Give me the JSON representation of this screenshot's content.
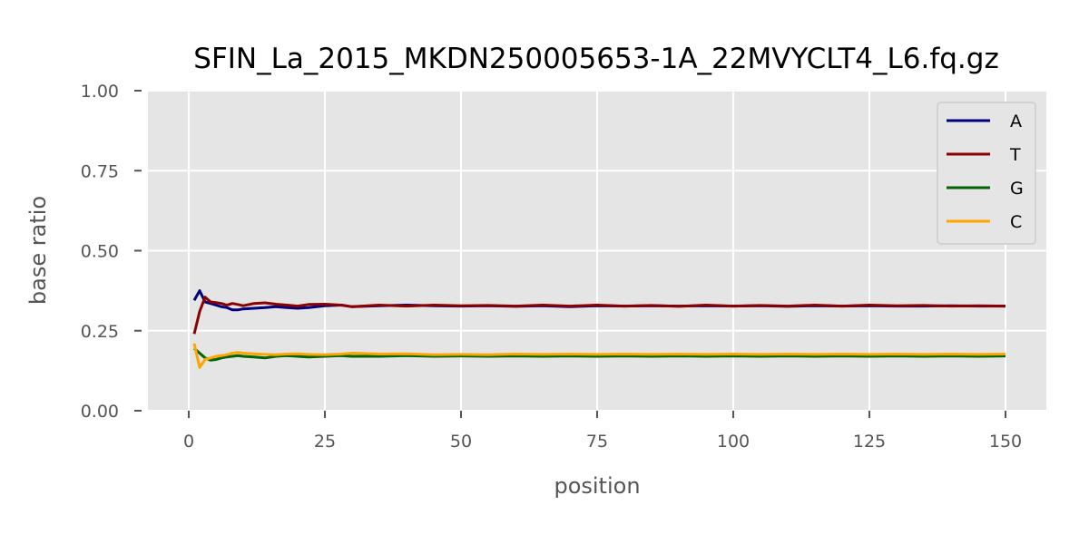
{
  "chart_data": {
    "type": "line",
    "title": "SFIN_La_2015_MKDN250005653-1A_22MVYCLT4_L6.fq.gz",
    "xlabel": "position",
    "ylabel": "base ratio",
    "xlim": [
      -7.5,
      157.5
    ],
    "ylim": [
      0.0,
      1.0
    ],
    "x_ticks": [
      0,
      25,
      50,
      75,
      100,
      125,
      150
    ],
    "x_tick_labels": [
      "0",
      "25",
      "50",
      "75",
      "100",
      "125",
      "150"
    ],
    "y_ticks": [
      0.0,
      0.25,
      0.5,
      0.75,
      1.0
    ],
    "y_tick_labels": [
      "0.00",
      "0.25",
      "0.50",
      "0.75",
      "1.00"
    ],
    "grid": true,
    "legend_position": "top-right",
    "series": [
      {
        "name": "A",
        "color": "#00007f",
        "x": [
          1,
          2,
          3,
          4,
          5,
          6,
          7,
          8,
          9,
          10,
          12,
          14,
          16,
          18,
          20,
          22,
          25,
          28,
          30,
          35,
          40,
          45,
          50,
          55,
          60,
          65,
          70,
          75,
          80,
          85,
          90,
          95,
          100,
          105,
          110,
          115,
          120,
          125,
          130,
          135,
          140,
          145,
          150
        ],
        "values": [
          0.345,
          0.375,
          0.34,
          0.335,
          0.33,
          0.325,
          0.322,
          0.315,
          0.315,
          0.318,
          0.32,
          0.322,
          0.325,
          0.322,
          0.32,
          0.322,
          0.328,
          0.33,
          0.325,
          0.328,
          0.33,
          0.328,
          0.327,
          0.328,
          0.326,
          0.328,
          0.325,
          0.328,
          0.327,
          0.328,
          0.327,
          0.328,
          0.327,
          0.328,
          0.326,
          0.328,
          0.327,
          0.328,
          0.327,
          0.327,
          0.328,
          0.327,
          0.327
        ]
      },
      {
        "name": "T",
        "color": "#8b0000",
        "x": [
          1,
          2,
          3,
          4,
          5,
          6,
          7,
          8,
          9,
          10,
          12,
          14,
          16,
          18,
          20,
          22,
          25,
          28,
          30,
          35,
          40,
          45,
          50,
          55,
          60,
          65,
          70,
          75,
          80,
          85,
          90,
          95,
          100,
          105,
          110,
          115,
          120,
          125,
          130,
          135,
          140,
          145,
          150
        ],
        "values": [
          0.24,
          0.31,
          0.355,
          0.34,
          0.338,
          0.335,
          0.33,
          0.335,
          0.332,
          0.328,
          0.335,
          0.337,
          0.333,
          0.33,
          0.327,
          0.332,
          0.333,
          0.33,
          0.325,
          0.33,
          0.327,
          0.33,
          0.328,
          0.329,
          0.327,
          0.33,
          0.327,
          0.33,
          0.327,
          0.329,
          0.326,
          0.33,
          0.327,
          0.329,
          0.327,
          0.33,
          0.327,
          0.33,
          0.328,
          0.329,
          0.327,
          0.328,
          0.327
        ]
      },
      {
        "name": "G",
        "color": "#006400",
        "x": [
          1,
          2,
          3,
          4,
          5,
          6,
          7,
          8,
          9,
          10,
          12,
          14,
          16,
          18,
          20,
          22,
          25,
          28,
          30,
          35,
          40,
          45,
          50,
          55,
          60,
          65,
          70,
          75,
          80,
          85,
          90,
          95,
          100,
          105,
          110,
          115,
          120,
          125,
          130,
          135,
          140,
          145,
          150
        ],
        "values": [
          0.195,
          0.18,
          0.165,
          0.158,
          0.16,
          0.165,
          0.168,
          0.17,
          0.172,
          0.17,
          0.168,
          0.165,
          0.17,
          0.172,
          0.17,
          0.168,
          0.17,
          0.172,
          0.17,
          0.17,
          0.172,
          0.17,
          0.171,
          0.17,
          0.171,
          0.17,
          0.171,
          0.17,
          0.171,
          0.17,
          0.171,
          0.17,
          0.171,
          0.17,
          0.171,
          0.17,
          0.171,
          0.17,
          0.171,
          0.17,
          0.171,
          0.17,
          0.171
        ]
      },
      {
        "name": "C",
        "color": "#ffa500",
        "x": [
          1,
          2,
          3,
          4,
          5,
          6,
          7,
          8,
          9,
          10,
          12,
          14,
          16,
          18,
          20,
          22,
          25,
          28,
          30,
          35,
          40,
          45,
          50,
          55,
          60,
          65,
          70,
          75,
          80,
          85,
          90,
          95,
          100,
          105,
          110,
          115,
          120,
          125,
          130,
          135,
          140,
          145,
          150
        ],
        "values": [
          0.21,
          0.135,
          0.16,
          0.165,
          0.17,
          0.172,
          0.175,
          0.18,
          0.182,
          0.18,
          0.178,
          0.176,
          0.175,
          0.177,
          0.178,
          0.176,
          0.175,
          0.177,
          0.18,
          0.177,
          0.178,
          0.175,
          0.176,
          0.175,
          0.177,
          0.176,
          0.177,
          0.176,
          0.177,
          0.176,
          0.177,
          0.176,
          0.177,
          0.176,
          0.177,
          0.176,
          0.177,
          0.176,
          0.177,
          0.176,
          0.177,
          0.176,
          0.177
        ]
      }
    ]
  }
}
